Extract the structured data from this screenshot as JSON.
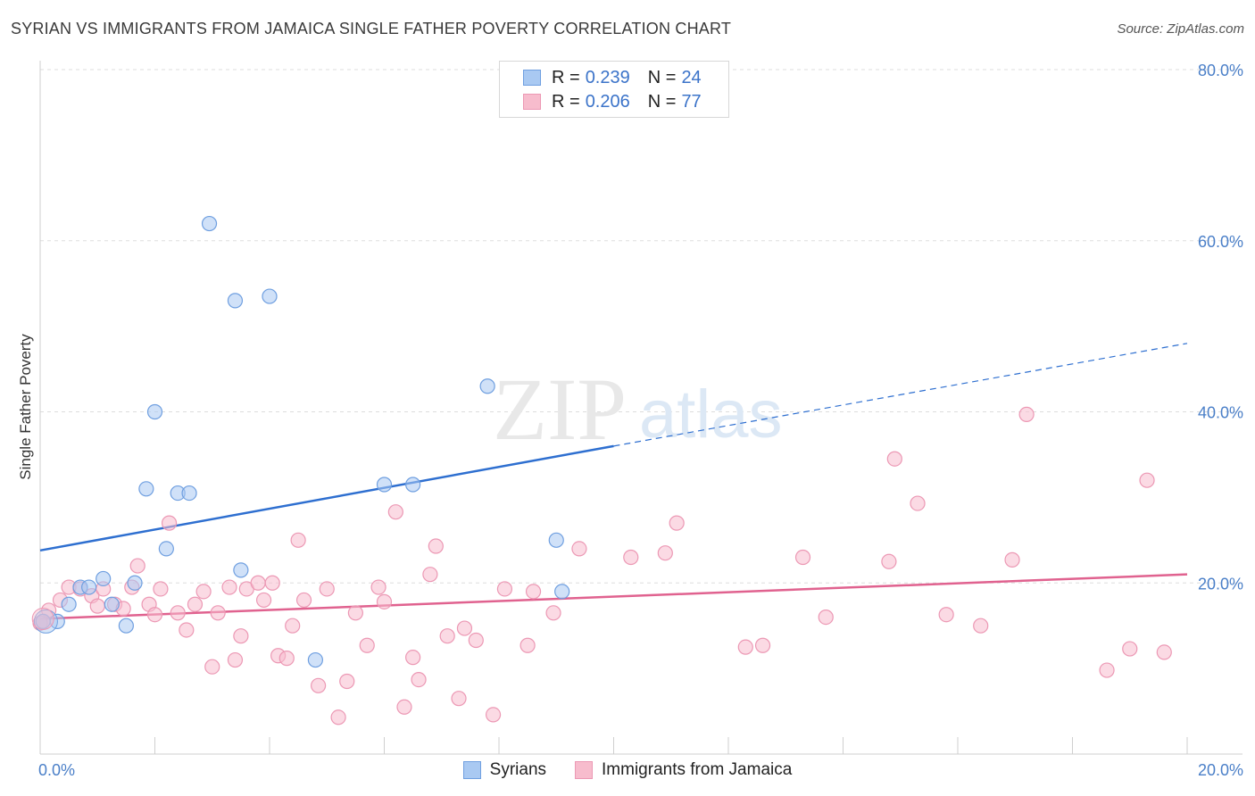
{
  "title": "SYRIAN VS IMMIGRANTS FROM JAMAICA SINGLE FATHER POVERTY CORRELATION CHART",
  "source": "Source: ZipAtlas.com",
  "watermark": {
    "zip": "ZIP",
    "atlas": "atlas"
  },
  "legend": [
    {
      "r_label": "R =",
      "r_value": "0.239",
      "n_label": "N =",
      "n_value": "24"
    },
    {
      "r_label": "R =",
      "r_value": "0.206",
      "n_label": "N =",
      "n_value": "77"
    }
  ],
  "bottom_legend": [
    "Syrians",
    "Immigrants from Jamaica"
  ],
  "colors": {
    "syrians_fill": "#a9c9f2",
    "syrians_stroke": "#6f9fe0",
    "syrians_line": "#2e6fd0",
    "jamaica_fill": "#f7bccd",
    "jamaica_stroke": "#ec98b4",
    "jamaica_line": "#e0628f",
    "tick_text": "#4a7fc8",
    "grid": "#dddddd"
  },
  "chart_data": {
    "type": "scatter",
    "title": "SYRIAN VS IMMIGRANTS FROM JAMAICA SINGLE FATHER POVERTY CORRELATION CHART",
    "xlabel": "",
    "ylabel": "Single Father Poverty",
    "xlim": [
      0,
      20
    ],
    "ylim": [
      0,
      80
    ],
    "x_ticks": [
      0,
      2,
      4,
      6,
      8,
      10,
      12,
      14,
      16,
      18,
      20
    ],
    "x_tick_labels": {
      "0": "0.0%",
      "20": "20.0%"
    },
    "y_ticks": [
      20,
      40,
      60,
      80
    ],
    "y_tick_labels": [
      "20.0%",
      "40.0%",
      "60.0%",
      "80.0%"
    ],
    "grid": true,
    "legend_position": "top-center",
    "series": [
      {
        "name": "Syrians",
        "r": 0.239,
        "n": 24,
        "trend": {
          "x": [
            0,
            10,
            20
          ],
          "y": [
            23.8,
            36.0,
            48.0
          ],
          "solid_until": 10
        },
        "points": [
          [
            0.05,
            15.5
          ],
          [
            0.3,
            15.5
          ],
          [
            0.5,
            17.5
          ],
          [
            0.7,
            19.5
          ],
          [
            0.85,
            19.5
          ],
          [
            1.1,
            20.5
          ],
          [
            1.25,
            17.5
          ],
          [
            1.5,
            15.0
          ],
          [
            1.65,
            20.0
          ],
          [
            1.85,
            31.0
          ],
          [
            2.0,
            40.0
          ],
          [
            2.2,
            24.0
          ],
          [
            2.4,
            30.5
          ],
          [
            2.6,
            30.5
          ],
          [
            2.95,
            62.0
          ],
          [
            3.4,
            53.0
          ],
          [
            3.5,
            21.5
          ],
          [
            4.0,
            53.5
          ],
          [
            4.8,
            11.0
          ],
          [
            6.0,
            31.5
          ],
          [
            6.5,
            31.5
          ],
          [
            7.8,
            43.0
          ],
          [
            9.0,
            25.0
          ],
          [
            9.1,
            19.0
          ]
        ]
      },
      {
        "name": "Immigrants from Jamaica",
        "r": 0.206,
        "n": 77,
        "trend": {
          "x": [
            0,
            20
          ],
          "y": [
            15.8,
            21.0
          ]
        },
        "points": [
          [
            0.05,
            15.5
          ],
          [
            0.15,
            16.8
          ],
          [
            0.35,
            18.0
          ],
          [
            0.5,
            19.5
          ],
          [
            0.7,
            19.3
          ],
          [
            0.9,
            18.5
          ],
          [
            1.0,
            17.3
          ],
          [
            1.1,
            19.3
          ],
          [
            1.3,
            17.5
          ],
          [
            1.45,
            17.0
          ],
          [
            1.6,
            19.5
          ],
          [
            1.7,
            22.0
          ],
          [
            1.9,
            17.5
          ],
          [
            2.0,
            16.3
          ],
          [
            2.1,
            19.3
          ],
          [
            2.25,
            27.0
          ],
          [
            2.4,
            16.5
          ],
          [
            2.55,
            14.5
          ],
          [
            2.7,
            17.5
          ],
          [
            2.85,
            19.0
          ],
          [
            3.0,
            10.2
          ],
          [
            3.1,
            16.5
          ],
          [
            3.3,
            19.5
          ],
          [
            3.4,
            11.0
          ],
          [
            3.5,
            13.8
          ],
          [
            3.6,
            19.3
          ],
          [
            3.8,
            20.0
          ],
          [
            3.9,
            18.0
          ],
          [
            4.05,
            20.0
          ],
          [
            4.15,
            11.5
          ],
          [
            4.3,
            11.2
          ],
          [
            4.4,
            15.0
          ],
          [
            4.5,
            25.0
          ],
          [
            4.6,
            18.0
          ],
          [
            4.85,
            8.0
          ],
          [
            5.0,
            19.3
          ],
          [
            5.2,
            4.3
          ],
          [
            5.35,
            8.5
          ],
          [
            5.5,
            16.5
          ],
          [
            5.7,
            12.7
          ],
          [
            5.9,
            19.5
          ],
          [
            6.0,
            17.8
          ],
          [
            6.2,
            28.3
          ],
          [
            6.35,
            5.5
          ],
          [
            6.5,
            11.3
          ],
          [
            6.6,
            8.7
          ],
          [
            6.8,
            21.0
          ],
          [
            6.9,
            24.3
          ],
          [
            7.1,
            13.8
          ],
          [
            7.3,
            6.5
          ],
          [
            7.4,
            14.7
          ],
          [
            7.6,
            13.3
          ],
          [
            7.9,
            4.6
          ],
          [
            8.1,
            19.3
          ],
          [
            8.5,
            12.7
          ],
          [
            8.6,
            19.0
          ],
          [
            8.95,
            16.5
          ],
          [
            9.4,
            24.0
          ],
          [
            10.3,
            23.0
          ],
          [
            10.9,
            23.5
          ],
          [
            11.1,
            27.0
          ],
          [
            12.3,
            12.5
          ],
          [
            12.6,
            12.7
          ],
          [
            13.3,
            23.0
          ],
          [
            13.7,
            16.0
          ],
          [
            14.8,
            22.5
          ],
          [
            14.9,
            34.5
          ],
          [
            15.3,
            29.3
          ],
          [
            15.8,
            16.3
          ],
          [
            16.4,
            15.0
          ],
          [
            16.95,
            22.7
          ],
          [
            17.2,
            39.7
          ],
          [
            18.6,
            9.8
          ],
          [
            19.0,
            12.3
          ],
          [
            19.3,
            32.0
          ],
          [
            19.6,
            11.9
          ],
          [
            0.0,
            15.3
          ]
        ]
      }
    ]
  }
}
